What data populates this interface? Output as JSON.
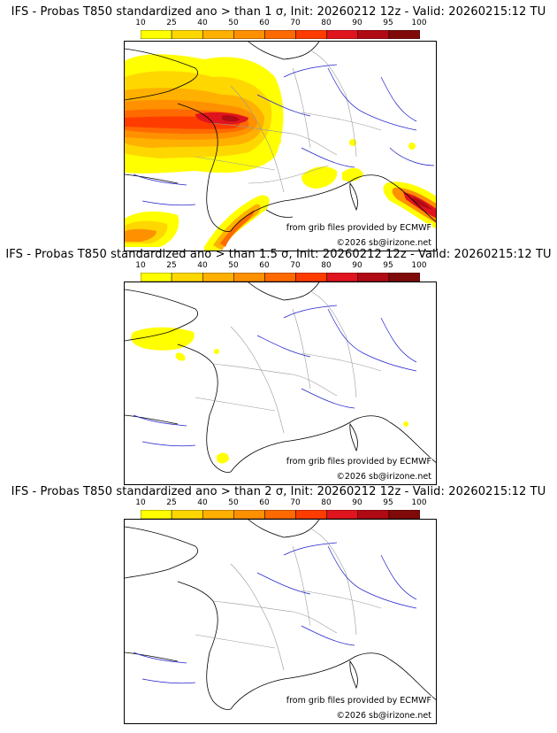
{
  "colorbar": {
    "ticks": [
      "10",
      "25",
      "40",
      "50",
      "60",
      "70",
      "80",
      "90",
      "95",
      "100"
    ],
    "colors": [
      "#ffff00",
      "#ffd700",
      "#ffb000",
      "#ff9000",
      "#ff6a00",
      "#ff3c00",
      "#e0141e",
      "#b00a14",
      "#800a0a"
    ]
  },
  "panels": [
    {
      "title": "IFS - Probas T850  standardized ano > than 1 σ, Init: 20260212 12z - Valid: 20260215:12 TU",
      "credit_source": "from grib files provided by ECMWF",
      "credit_copyright": "©2026 sb@irizone.net"
    },
    {
      "title": "IFS - Probas T850  standardized ano > than 1.5 σ, Init: 20260212 12z - Valid: 20260215:12 TU",
      "credit_source": "from grib files provided by ECMWF",
      "credit_copyright": "©2026 sb@irizone.net"
    },
    {
      "title": "IFS - Probas T850  standardized ano > than 2 σ, Init: 20260212 12z - Valid: 20260215:12 TU",
      "credit_source": "from grib files provided by ECMWF",
      "credit_copyright": "©2026 sb@irizone.net"
    }
  ],
  "colors": {
    "coast": "#000000",
    "borders": "#999999",
    "rivers": "#2222cc"
  }
}
